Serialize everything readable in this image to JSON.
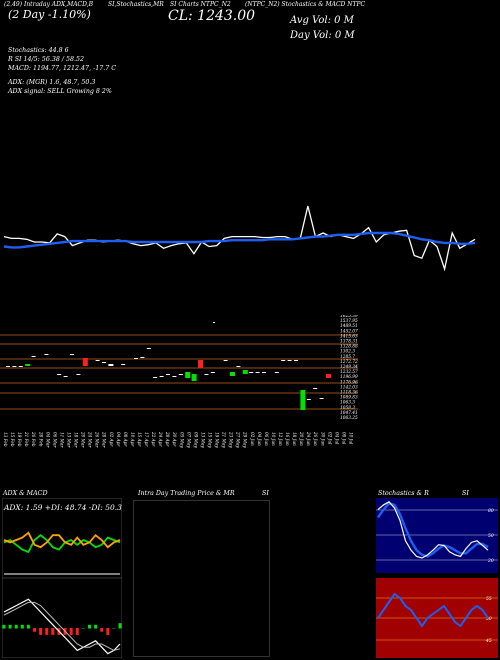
{
  "header": {
    "top_left": "(2.49) Intraday ADX,MACD,B",
    "top_mid1": "SI,Stochastics,MR",
    "top_mid2": "SI Charts NTPC_N2",
    "top_right": "(NTPC_N2) Stochastics & MACD NTPC",
    "big_left": "(2 Day -1.10%)",
    "close": "CL: 1243.00",
    "avg_vol": "Avg Vol: 0  M",
    "day_vol": "Day Vol: 0  M"
  },
  "info": {
    "line1": "Stochastics: 44.8          6",
    "line2": "R       SI 14/5: 56.38 / 58.52",
    "line3": "MACD: 1194.77, 1212.47, -17.7 C",
    "line4": "ADX:                (MGR) 1.6, 48.7, 50.3",
    "line5": "ADX  signal: SELL Growing 8 2%"
  },
  "panels": {
    "adx_title": "ADX  & MACD",
    "intra_title": "Intra  Day Trading Price  & MR",
    "si_title": "SI",
    "stoch_title": "Stochastics & R",
    "stoch_si": "SI",
    "adx_values": "ADX: 1.59  +DI: 48.74  -DI: 50.37"
  },
  "colors": {
    "price_line": "#ffffff",
    "ma_line": "#1e5ef0",
    "grid_line": "#c8641e",
    "green": "#00e000",
    "red": "#ff2020",
    "stoch_bg": "#000070",
    "rsi_bg": "#a00000",
    "orange": "#ffa500"
  },
  "chart_data": {
    "type": "line",
    "price_series": [
      46,
      44,
      44,
      43,
      40,
      40,
      39,
      49,
      46,
      36,
      39,
      42,
      42,
      40,
      41,
      42,
      41,
      38,
      36,
      37,
      39,
      33,
      36,
      38,
      39,
      27,
      40,
      35,
      36,
      44,
      46,
      46,
      46,
      46,
      45,
      45,
      46,
      46,
      43,
      44,
      80,
      46,
      50,
      46,
      48,
      46,
      44,
      49,
      56,
      40,
      48,
      50,
      52,
      53,
      25,
      22,
      42,
      35,
      10,
      50,
      33,
      38,
      43
    ],
    "ma_series": [
      35,
      34,
      34,
      35,
      36,
      37,
      38,
      39,
      40,
      41,
      41,
      41,
      41,
      41,
      41,
      41,
      41,
      40,
      40,
      40,
      40,
      40,
      40,
      40,
      40,
      40,
      40,
      41,
      41,
      41,
      42,
      42,
      42,
      42,
      42,
      43,
      43,
      43,
      43,
      44,
      45,
      46,
      46,
      47,
      48,
      48,
      48,
      49,
      50,
      50,
      50,
      50,
      49,
      47,
      45,
      43,
      42,
      40,
      39,
      39,
      38,
      38,
      39
    ],
    "volume_price_labels": [
      "1625.39",
      "1537.95",
      "1489.51",
      "1452.07",
      "1415.63",
      "1378.31",
      "1328.88",
      "1302.3",
      "1285.7",
      "1272.72",
      "1249.34",
      "1232.57",
      "1196.99",
      "1176.96",
      "1142.03",
      "1118.36",
      "1089.83",
      "1063.3",
      "1058.3",
      "1047.41",
      "1063.25"
    ],
    "date_labels": [
      "13 Feb",
      "15 Feb",
      "19 Feb",
      "21 Feb",
      "26 Feb",
      "28 Feb",
      "04 Mar",
      "06 Mar",
      "11 Mar",
      "13 Mar",
      "18 Mar",
      "20 Mar",
      "24 Mar",
      "26 Mar",
      "28 Mar",
      "02 Apr",
      "04 Apr",
      "08 Apr",
      "10 Apr",
      "15 Apr",
      "17 Apr",
      "22 Apr",
      "24 Apr",
      "28 Apr",
      "30 Apr",
      "05 May",
      "07 May",
      "09 May",
      "13 May",
      "15 May",
      "19 May",
      "21 May",
      "23 May",
      "27 May",
      "29 May",
      "02 Jun",
      "04 Jun",
      "06 Jun",
      "10 Jun",
      "12 Jun",
      "16 Jun",
      "18 Jun",
      "20 Jun",
      "24 Jun",
      "26 Jun",
      "30 Jun",
      "02 Jul",
      "04 Jul",
      "08 Jul",
      "10 Jul"
    ],
    "candles": [
      {
        "x": 0,
        "y": 366,
        "h": 1,
        "c": "w"
      },
      {
        "x": 1,
        "y": 366,
        "h": 1,
        "c": "w"
      },
      {
        "x": 2,
        "y": 366,
        "h": 1,
        "c": "w"
      },
      {
        "x": 3,
        "y": 364,
        "h": 2,
        "c": "g"
      },
      {
        "x": 4,
        "y": 356,
        "h": 1,
        "c": "w"
      },
      {
        "x": 6,
        "y": 354,
        "h": 1,
        "c": "w"
      },
      {
        "x": 8,
        "y": 374,
        "h": 1,
        "c": "w"
      },
      {
        "x": 9,
        "y": 376,
        "h": 1,
        "c": "w"
      },
      {
        "x": 10,
        "y": 354,
        "h": 1,
        "c": "w"
      },
      {
        "x": 11,
        "y": 374,
        "h": 1,
        "c": "w"
      },
      {
        "x": 12,
        "y": 358,
        "h": 8,
        "c": "r"
      },
      {
        "x": 14,
        "y": 360,
        "h": 1,
        "c": "w"
      },
      {
        "x": 15,
        "y": 362,
        "h": 1,
        "c": "w"
      },
      {
        "x": 16,
        "y": 364,
        "h": 2,
        "c": "w"
      },
      {
        "x": 18,
        "y": 364,
        "h": 1,
        "c": "w"
      },
      {
        "x": 20,
        "y": 358,
        "h": 1,
        "c": "w"
      },
      {
        "x": 21,
        "y": 357,
        "h": 1,
        "c": "w"
      },
      {
        "x": 22,
        "y": 348,
        "h": 1,
        "c": "w"
      },
      {
        "x": 23,
        "y": 377,
        "h": 1,
        "c": "w"
      },
      {
        "x": 24,
        "y": 376,
        "h": 1,
        "c": "w"
      },
      {
        "x": 25,
        "y": 374,
        "h": 1,
        "c": "w"
      },
      {
        "x": 26,
        "y": 376,
        "h": 1,
        "c": "w"
      },
      {
        "x": 27,
        "y": 374,
        "h": 1,
        "c": "w"
      },
      {
        "x": 28,
        "y": 372,
        "h": 6,
        "c": "g"
      },
      {
        "x": 29,
        "y": 374,
        "h": 7,
        "c": "g"
      },
      {
        "x": 30,
        "y": 360,
        "h": 8,
        "c": "r"
      },
      {
        "x": 31,
        "y": 374,
        "h": 1,
        "c": "w"
      },
      {
        "x": 32,
        "y": 372,
        "h": 1,
        "c": "w"
      },
      {
        "x": 34,
        "y": 360,
        "h": 1,
        "c": "w"
      },
      {
        "x": 35,
        "y": 372,
        "h": 4,
        "c": "g"
      },
      {
        "x": 36,
        "y": 366,
        "h": 1,
        "c": "w"
      },
      {
        "x": 37,
        "y": 370,
        "h": 4,
        "c": "g"
      },
      {
        "x": 38,
        "y": 372,
        "h": 1,
        "c": "w"
      },
      {
        "x": 39,
        "y": 372,
        "h": 1,
        "c": "w"
      },
      {
        "x": 40,
        "y": 372,
        "h": 1,
        "c": "w"
      },
      {
        "x": 42,
        "y": 372,
        "h": 1,
        "c": "w"
      },
      {
        "x": 43,
        "y": 360,
        "h": 1,
        "c": "w"
      },
      {
        "x": 44,
        "y": 360,
        "h": 1,
        "c": "w"
      },
      {
        "x": 45,
        "y": 360,
        "h": 1,
        "c": "w"
      },
      {
        "x": 46,
        "y": 390,
        "h": 20,
        "c": "g"
      },
      {
        "x": 47,
        "y": 399,
        "h": 1,
        "c": "w"
      },
      {
        "x": 48,
        "y": 388,
        "h": 1,
        "c": "w"
      },
      {
        "x": 49,
        "y": 398,
        "h": 1,
        "c": "w"
      },
      {
        "x": 50,
        "y": 374,
        "h": 4,
        "c": "r"
      }
    ],
    "stoch_series": [
      80,
      86,
      90,
      82,
      66,
      40,
      28,
      20,
      18,
      22,
      28,
      35,
      34,
      26,
      22,
      20,
      30,
      38,
      40,
      34,
      28
    ],
    "stoch_signal": [
      70,
      80,
      88,
      86,
      74,
      56,
      40,
      28,
      22,
      20,
      24,
      30,
      34,
      32,
      28,
      24,
      24,
      30,
      36,
      36,
      32
    ],
    "rsi_series": [
      50,
      52,
      54,
      56,
      55,
      53,
      52,
      50,
      48,
      50,
      51,
      52,
      53,
      51,
      49,
      48,
      50,
      52,
      53,
      52,
      50
    ],
    "adx_di_plus": [
      28,
      30,
      26,
      22,
      20,
      30,
      34,
      30,
      24,
      22,
      28,
      30,
      26,
      30,
      28,
      24,
      26,
      32,
      30,
      28
    ],
    "adx_di_minus": [
      30,
      28,
      30,
      32,
      36,
      26,
      24,
      28,
      34,
      34,
      28,
      26,
      32,
      26,
      28,
      34,
      30,
      24,
      28,
      30
    ],
    "adx_line": [
      40,
      40,
      40,
      40,
      40,
      40,
      40,
      40,
      40,
      40,
      40,
      40,
      40,
      40,
      40,
      40,
      40,
      40,
      40,
      40
    ],
    "macd_line": [
      10,
      12,
      14,
      16,
      18,
      14,
      10,
      6,
      2,
      -2,
      -6,
      -10,
      -14,
      -12,
      -10,
      -8,
      -12,
      -16,
      -14,
      -10
    ],
    "macd_signal": [
      8,
      10,
      12,
      14,
      16,
      16,
      14,
      10,
      6,
      2,
      -2,
      -6,
      -10,
      -12,
      -12,
      -10,
      -10,
      -12,
      -14,
      -13
    ],
    "macd_hist": [
      2,
      2,
      2,
      2,
      2,
      -2,
      -4,
      -4,
      -4,
      -4,
      -4,
      -4,
      -4,
      0,
      2,
      2,
      -2,
      -4,
      0,
      3
    ]
  }
}
